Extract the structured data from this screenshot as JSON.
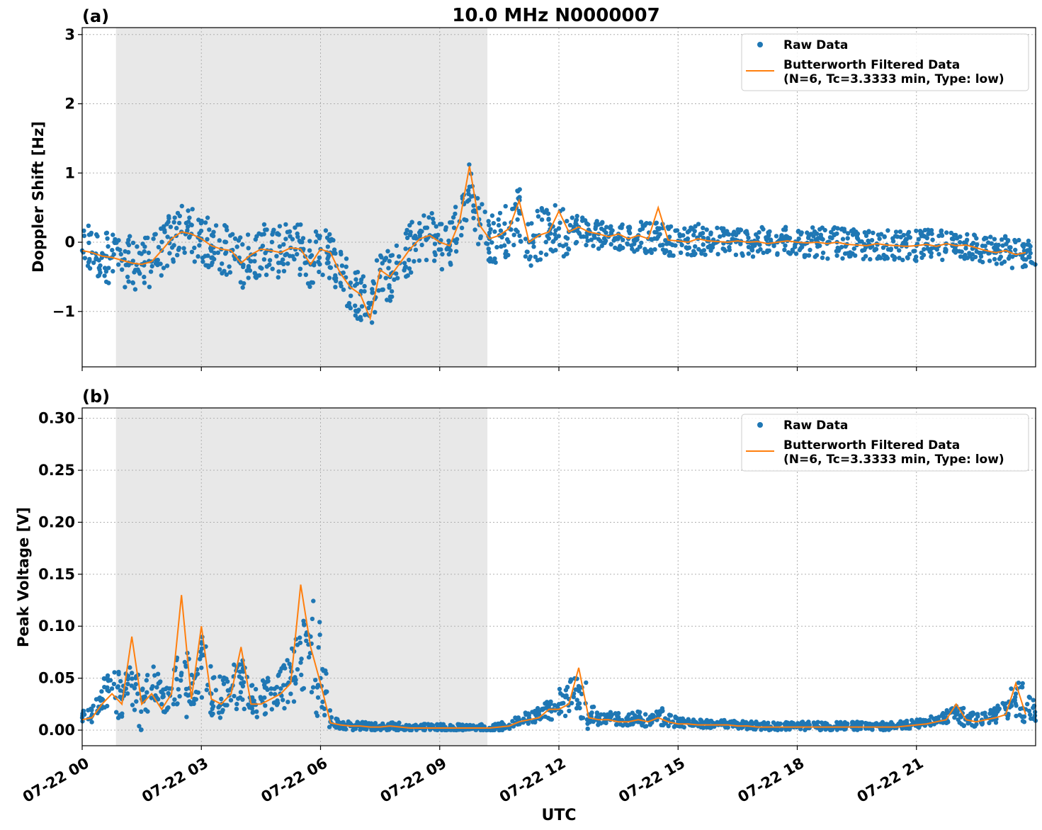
{
  "figure": {
    "title": "10.0 MHz N0000007",
    "xlabel": "UTC",
    "x_tick_labels": [
      "07-22 00",
      "07-22 03",
      "07-22 06",
      "07-22 09",
      "07-22 12",
      "07-22 15",
      "07-22 18",
      "07-22 21"
    ],
    "night_shading_hours": [
      0.85,
      10.2
    ]
  },
  "legend": {
    "raw_label": "Raw Data",
    "filtered_label_line1": "Butterworth Filtered Data",
    "filtered_label_line2": "(N=6, Tc=3.3333 min, Type: low)"
  },
  "colors": {
    "raw": "#1f77b4",
    "filtered": "#ff7f0e",
    "shade": "#e8e8e8",
    "grid": "#b0b0b0"
  },
  "chart_data": [
    {
      "type": "scatter",
      "panel_label": "(a)",
      "ylabel": "Doppler Shift [Hz]",
      "xlim": [
        0,
        24
      ],
      "ylim": [
        -1.8,
        3.1
      ],
      "yticks": [
        -1,
        0,
        1,
        2,
        3
      ],
      "ytick_labels": [
        "−1",
        "0",
        "1",
        "2",
        "3"
      ],
      "series": [
        {
          "name": "Raw Data",
          "kind": "scatter",
          "x": [
            0.0,
            0.25,
            0.5,
            0.75,
            1.0,
            1.25,
            1.5,
            1.75,
            2.0,
            2.25,
            2.5,
            2.75,
            3.0,
            3.25,
            3.5,
            3.75,
            4.0,
            4.25,
            4.5,
            4.75,
            5.0,
            5.25,
            5.5,
            5.75,
            6.0,
            6.25,
            6.5,
            6.75,
            7.0,
            7.25,
            7.5,
            7.75,
            8.0,
            8.25,
            8.5,
            8.75,
            9.0,
            9.25,
            9.5,
            9.75,
            10.0,
            10.25,
            10.5,
            10.75,
            11.0,
            11.25,
            11.5,
            11.75,
            12.0,
            12.25,
            12.5,
            12.75,
            13.0,
            13.25,
            13.5,
            13.75,
            14.0,
            14.25,
            14.5,
            14.75,
            15.0,
            15.25,
            15.5,
            15.75,
            16.0,
            16.25,
            16.5,
            16.75,
            17.0,
            17.25,
            17.5,
            17.75,
            18.0,
            18.25,
            18.5,
            18.75,
            19.0,
            19.25,
            19.5,
            19.75,
            20.0,
            20.25,
            20.5,
            20.75,
            21.0,
            21.25,
            21.5,
            21.75,
            22.0,
            22.25,
            22.5,
            22.75,
            23.0,
            23.25,
            23.5,
            23.75
          ],
          "y": [
            -0.12,
            -0.15,
            -0.2,
            -0.22,
            -0.26,
            -0.3,
            -0.32,
            -0.28,
            -0.12,
            0.05,
            0.15,
            0.12,
            0.05,
            -0.05,
            -0.1,
            -0.12,
            -0.3,
            -0.18,
            -0.1,
            -0.12,
            -0.15,
            -0.08,
            -0.1,
            -0.32,
            -0.1,
            -0.15,
            -0.45,
            -0.65,
            -0.75,
            -0.9,
            -0.4,
            -0.5,
            -0.3,
            -0.1,
            0.05,
            0.1,
            0.0,
            -0.05,
            0.3,
            0.8,
            0.25,
            0.05,
            0.1,
            0.2,
            0.45,
            0.0,
            0.1,
            0.15,
            0.2,
            0.15,
            0.22,
            0.15,
            0.12,
            0.08,
            0.12,
            0.05,
            0.1,
            0.05,
            0.08,
            0.03,
            0.02,
            0.0,
            0.05,
            0.02,
            0.01,
            0.0,
            0.02,
            0.0,
            0.01,
            -0.02,
            0.0,
            0.02,
            0.0,
            -0.01,
            0.0,
            -0.02,
            0.0,
            -0.03,
            -0.04,
            -0.05,
            -0.02,
            -0.04,
            -0.05,
            -0.06,
            -0.05,
            -0.03,
            -0.06,
            -0.02,
            -0.05,
            -0.04,
            -0.08,
            -0.12,
            -0.15,
            -0.12,
            -0.18,
            -0.15
          ]
        },
        {
          "name": "Butterworth Filtered Data",
          "kind": "line",
          "x": [
            0.0,
            0.25,
            0.5,
            0.75,
            1.0,
            1.25,
            1.5,
            1.75,
            2.0,
            2.25,
            2.5,
            2.75,
            3.0,
            3.25,
            3.5,
            3.75,
            4.0,
            4.25,
            4.5,
            4.75,
            5.0,
            5.25,
            5.5,
            5.75,
            6.0,
            6.25,
            6.5,
            6.75,
            7.0,
            7.25,
            7.5,
            7.75,
            8.0,
            8.25,
            8.5,
            8.75,
            9.0,
            9.25,
            9.5,
            9.75,
            10.0,
            10.25,
            10.5,
            10.75,
            11.0,
            11.25,
            11.5,
            11.75,
            12.0,
            12.25,
            12.5,
            12.75,
            13.0,
            13.25,
            13.5,
            13.75,
            14.0,
            14.25,
            14.5,
            14.75,
            15.0,
            15.25,
            15.5,
            15.75,
            16.0,
            16.25,
            16.5,
            16.75,
            17.0,
            17.25,
            17.5,
            17.75,
            18.0,
            18.25,
            18.5,
            18.75,
            19.0,
            19.25,
            19.5,
            19.75,
            20.0,
            20.25,
            20.5,
            20.75,
            21.0,
            21.25,
            21.5,
            21.75,
            22.0,
            22.25,
            22.5,
            22.75,
            23.0,
            23.25,
            23.5,
            23.75
          ],
          "y": [
            -0.12,
            -0.15,
            -0.2,
            -0.22,
            -0.26,
            -0.3,
            -0.32,
            -0.28,
            -0.12,
            0.05,
            0.15,
            0.12,
            0.05,
            -0.05,
            -0.1,
            -0.12,
            -0.3,
            -0.18,
            -0.1,
            -0.12,
            -0.15,
            -0.08,
            -0.1,
            -0.32,
            -0.1,
            -0.15,
            -0.45,
            -0.65,
            -0.75,
            -1.1,
            -0.4,
            -0.5,
            -0.3,
            -0.1,
            0.05,
            0.1,
            0.0,
            -0.05,
            0.3,
            1.1,
            0.25,
            0.05,
            0.1,
            0.2,
            0.6,
            0.0,
            0.1,
            0.15,
            0.45,
            0.15,
            0.22,
            0.15,
            0.12,
            0.08,
            0.12,
            0.05,
            0.1,
            0.05,
            0.5,
            0.03,
            0.02,
            0.0,
            0.05,
            0.02,
            0.01,
            0.0,
            0.02,
            0.0,
            0.01,
            -0.02,
            0.0,
            0.02,
            0.0,
            -0.01,
            0.0,
            -0.02,
            0.0,
            -0.03,
            -0.04,
            -0.05,
            -0.02,
            -0.04,
            -0.05,
            -0.06,
            -0.05,
            -0.03,
            -0.06,
            -0.02,
            -0.05,
            -0.04,
            -0.08,
            -0.12,
            -0.15,
            -0.12,
            -0.18,
            -0.15
          ]
        }
      ]
    },
    {
      "type": "scatter",
      "panel_label": "(b)",
      "ylabel": "Peak Voltage [V]",
      "xlim": [
        0,
        24
      ],
      "ylim": [
        -0.015,
        0.31
      ],
      "yticks": [
        0.0,
        0.05,
        0.1,
        0.15,
        0.2,
        0.25,
        0.3
      ],
      "ytick_labels": [
        "0.00",
        "0.05",
        "0.10",
        "0.15",
        "0.20",
        "0.25",
        "0.30"
      ],
      "series": [
        {
          "name": "Raw Data",
          "kind": "scatter",
          "x": [
            0.0,
            0.25,
            0.5,
            0.75,
            1.0,
            1.25,
            1.5,
            1.75,
            2.0,
            2.25,
            2.5,
            2.75,
            3.0,
            3.25,
            3.5,
            3.75,
            4.0,
            4.25,
            4.5,
            4.75,
            5.0,
            5.25,
            5.5,
            5.75,
            6.0,
            6.25,
            6.5,
            6.75,
            7.0,
            7.25,
            7.5,
            7.75,
            8.0,
            8.25,
            8.5,
            8.75,
            9.0,
            9.25,
            9.5,
            9.75,
            10.0,
            10.25,
            10.5,
            10.75,
            11.0,
            11.25,
            11.5,
            11.75,
            12.0,
            12.25,
            12.5,
            12.75,
            13.0,
            13.25,
            13.5,
            13.75,
            14.0,
            14.25,
            14.5,
            14.75,
            15.0,
            15.25,
            15.5,
            15.75,
            16.0,
            16.25,
            16.5,
            16.75,
            17.0,
            17.25,
            17.5,
            17.75,
            18.0,
            18.25,
            18.5,
            18.75,
            19.0,
            19.25,
            19.5,
            19.75,
            20.0,
            20.25,
            20.5,
            20.75,
            21.0,
            21.25,
            21.5,
            21.75,
            22.0,
            22.25,
            22.5,
            22.75,
            23.0,
            23.25,
            23.5,
            23.75
          ],
          "y": [
            0.012,
            0.015,
            0.03,
            0.04,
            0.03,
            0.055,
            0.03,
            0.04,
            0.025,
            0.04,
            0.055,
            0.035,
            0.06,
            0.035,
            0.03,
            0.04,
            0.045,
            0.028,
            0.03,
            0.035,
            0.04,
            0.05,
            0.065,
            0.09,
            0.05,
            0.008,
            0.005,
            0.004,
            0.004,
            0.003,
            0.003,
            0.004,
            0.003,
            0.002,
            0.002,
            0.002,
            0.002,
            0.002,
            0.002,
            0.002,
            0.002,
            0.002,
            0.003,
            0.005,
            0.01,
            0.012,
            0.015,
            0.02,
            0.025,
            0.03,
            0.04,
            0.015,
            0.012,
            0.012,
            0.01,
            0.01,
            0.012,
            0.01,
            0.015,
            0.01,
            0.008,
            0.007,
            0.006,
            0.006,
            0.006,
            0.006,
            0.005,
            0.005,
            0.004,
            0.004,
            0.004,
            0.004,
            0.004,
            0.004,
            0.004,
            0.003,
            0.004,
            0.004,
            0.004,
            0.004,
            0.004,
            0.004,
            0.004,
            0.005,
            0.006,
            0.008,
            0.01,
            0.012,
            0.015,
            0.012,
            0.01,
            0.012,
            0.015,
            0.02,
            0.035,
            0.02
          ]
        },
        {
          "name": "Butterworth Filtered Data",
          "kind": "line",
          "x": [
            0.0,
            0.25,
            0.5,
            0.75,
            1.0,
            1.25,
            1.5,
            1.75,
            2.0,
            2.25,
            2.5,
            2.75,
            3.0,
            3.25,
            3.5,
            3.75,
            4.0,
            4.25,
            4.5,
            4.75,
            5.0,
            5.25,
            5.5,
            5.75,
            6.0,
            6.25,
            6.5,
            6.75,
            7.0,
            7.25,
            7.5,
            7.75,
            8.0,
            8.25,
            8.5,
            8.75,
            9.0,
            9.25,
            9.5,
            9.75,
            10.0,
            10.25,
            10.5,
            10.75,
            11.0,
            11.25,
            11.5,
            11.75,
            12.0,
            12.25,
            12.5,
            12.75,
            13.0,
            13.25,
            13.5,
            13.75,
            14.0,
            14.25,
            14.5,
            14.75,
            15.0,
            15.25,
            15.5,
            15.75,
            16.0,
            16.25,
            16.5,
            16.75,
            17.0,
            17.25,
            17.5,
            17.75,
            18.0,
            18.25,
            18.5,
            18.75,
            19.0,
            19.25,
            19.5,
            19.75,
            20.0,
            20.25,
            20.5,
            20.75,
            21.0,
            21.25,
            21.5,
            21.75,
            22.0,
            22.25,
            22.5,
            22.75,
            23.0,
            23.25,
            23.5,
            23.75
          ],
          "y": [
            0.01,
            0.012,
            0.025,
            0.035,
            0.025,
            0.09,
            0.025,
            0.035,
            0.02,
            0.035,
            0.13,
            0.03,
            0.1,
            0.03,
            0.025,
            0.035,
            0.08,
            0.025,
            0.025,
            0.03,
            0.035,
            0.045,
            0.14,
            0.08,
            0.045,
            0.007,
            0.005,
            0.004,
            0.004,
            0.003,
            0.003,
            0.004,
            0.003,
            0.002,
            0.002,
            0.002,
            0.002,
            0.002,
            0.002,
            0.002,
            0.002,
            0.002,
            0.003,
            0.004,
            0.008,
            0.01,
            0.012,
            0.02,
            0.02,
            0.025,
            0.06,
            0.012,
            0.01,
            0.01,
            0.008,
            0.008,
            0.01,
            0.008,
            0.012,
            0.008,
            0.006,
            0.006,
            0.005,
            0.005,
            0.005,
            0.005,
            0.004,
            0.004,
            0.003,
            0.003,
            0.003,
            0.003,
            0.003,
            0.003,
            0.003,
            0.003,
            0.003,
            0.003,
            0.003,
            0.003,
            0.003,
            0.003,
            0.003,
            0.004,
            0.005,
            0.006,
            0.008,
            0.01,
            0.025,
            0.01,
            0.008,
            0.01,
            0.012,
            0.015,
            0.045,
            0.015
          ]
        }
      ]
    }
  ]
}
